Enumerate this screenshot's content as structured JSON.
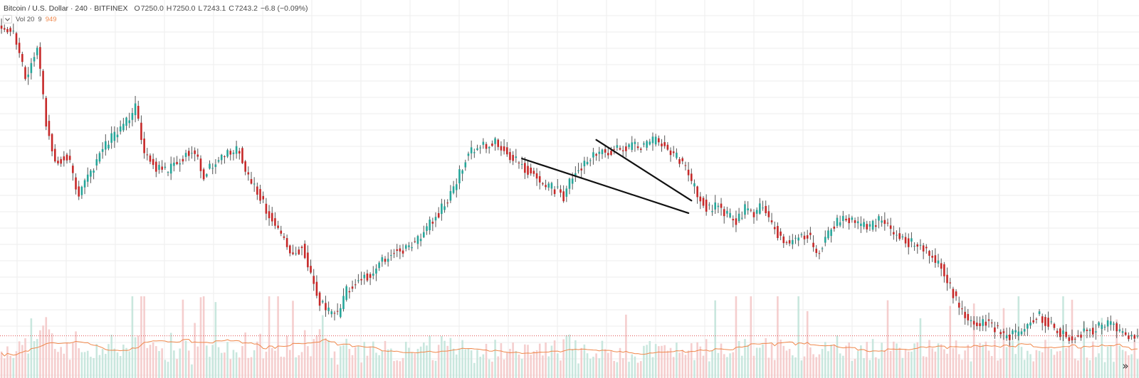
{
  "header": {
    "symbol": "Bitcoin / U.S. Dollar",
    "interval": "240",
    "exchange": "BITFINEX",
    "open_label": "O",
    "open": "7250.0",
    "high_label": "H",
    "high": "7250.0",
    "low_label": "L",
    "low": "7243.1",
    "close_label": "C",
    "close": "7243.2",
    "change": "−6.8 (−0.09%)"
  },
  "volume_indicator": {
    "name": "Vol 20",
    "value_a": "9",
    "value_b": "949",
    "collapse_icon": "chevron-down-icon"
  },
  "scroll_button": {
    "icon": "double-chevron-right-icon",
    "glyph": "»"
  },
  "colors": {
    "up": "#26a69a",
    "down": "#c62828",
    "wick": "#555555",
    "volume_up": "#bfe3d8",
    "volume_down": "#f3c6c6",
    "volume_ma": "#f0874a",
    "last_price_line": "#e05050",
    "trendline": "#111111",
    "grid": "#eeeeee"
  },
  "chart_data": {
    "type": "candlestick",
    "symbol": "Bitcoin / U.S. Dollar",
    "interval": "240",
    "grid": true,
    "last_close": 7243.2,
    "volume_ma_period": 20,
    "anchors": [
      [
        0,
        9210
      ],
      [
        4,
        9190
      ],
      [
        8,
        8900
      ],
      [
        12,
        9080
      ],
      [
        15,
        8620
      ],
      [
        18,
        8350
      ],
      [
        22,
        8400
      ],
      [
        26,
        8150
      ],
      [
        30,
        8300
      ],
      [
        34,
        8440
      ],
      [
        38,
        8530
      ],
      [
        42,
        8620
      ],
      [
        45,
        8700
      ],
      [
        48,
        8420
      ],
      [
        52,
        8320
      ],
      [
        56,
        8300
      ],
      [
        60,
        8380
      ],
      [
        64,
        8440
      ],
      [
        68,
        8280
      ],
      [
        72,
        8360
      ],
      [
        76,
        8410
      ],
      [
        80,
        8430
      ],
      [
        83,
        8250
      ],
      [
        86,
        8180
      ],
      [
        90,
        8020
      ],
      [
        94,
        7880
      ],
      [
        98,
        7760
      ],
      [
        101,
        7820
      ],
      [
        104,
        7630
      ],
      [
        107,
        7460
      ],
      [
        110,
        7400
      ],
      [
        113,
        7380
      ],
      [
        116,
        7530
      ],
      [
        120,
        7610
      ],
      [
        124,
        7640
      ],
      [
        128,
        7720
      ],
      [
        132,
        7780
      ],
      [
        136,
        7800
      ],
      [
        140,
        7870
      ],
      [
        144,
        7960
      ],
      [
        148,
        8060
      ],
      [
        152,
        8180
      ],
      [
        156,
        8380
      ],
      [
        160,
        8460
      ],
      [
        163,
        8450
      ],
      [
        166,
        8500
      ],
      [
        169,
        8440
      ],
      [
        172,
        8370
      ],
      [
        175,
        8340
      ],
      [
        178,
        8290
      ],
      [
        181,
        8230
      ],
      [
        184,
        8200
      ],
      [
        187,
        8180
      ],
      [
        189,
        8120
      ],
      [
        192,
        8270
      ],
      [
        196,
        8340
      ],
      [
        200,
        8420
      ],
      [
        204,
        8420
      ],
      [
        208,
        8440
      ],
      [
        212,
        8460
      ],
      [
        216,
        8450
      ],
      [
        220,
        8500
      ],
      [
        223,
        8470
      ],
      [
        226,
        8400
      ],
      [
        229,
        8350
      ],
      [
        232,
        8220
      ],
      [
        235,
        8120
      ],
      [
        238,
        8050
      ],
      [
        241,
        8080
      ],
      [
        244,
        8010
      ],
      [
        247,
        7980
      ],
      [
        250,
        8060
      ],
      [
        253,
        8020
      ],
      [
        256,
        8080
      ],
      [
        259,
        7960
      ],
      [
        262,
        7870
      ],
      [
        265,
        7840
      ],
      [
        268,
        7870
      ],
      [
        271,
        7900
      ],
      [
        274,
        7770
      ],
      [
        277,
        7860
      ],
      [
        280,
        7960
      ],
      [
        283,
        7980
      ],
      [
        286,
        8000
      ],
      [
        289,
        7950
      ],
      [
        292,
        7940
      ],
      [
        295,
        7980
      ],
      [
        298,
        7940
      ],
      [
        301,
        7890
      ],
      [
        304,
        7850
      ],
      [
        307,
        7830
      ],
      [
        310,
        7810
      ],
      [
        313,
        7740
      ],
      [
        316,
        7690
      ],
      [
        319,
        7560
      ],
      [
        322,
        7420
      ],
      [
        325,
        7350
      ],
      [
        328,
        7310
      ],
      [
        331,
        7340
      ],
      [
        334,
        7300
      ],
      [
        337,
        7230
      ],
      [
        340,
        7250
      ],
      [
        343,
        7270
      ],
      [
        346,
        7340
      ],
      [
        349,
        7380
      ],
      [
        352,
        7320
      ],
      [
        355,
        7280
      ],
      [
        358,
        7240
      ],
      [
        361,
        7240
      ],
      [
        364,
        7270
      ],
      [
        367,
        7280
      ],
      [
        370,
        7310
      ],
      [
        373,
        7330
      ],
      [
        376,
        7270
      ],
      [
        379,
        7250
      ],
      [
        382,
        7250
      ]
    ],
    "drawings": [
      {
        "type": "trendline",
        "label": "upper",
        "points": [
          {
            "bar": 200,
            "price": 8500
          },
          {
            "bar": 232,
            "price": 8110
          }
        ]
      },
      {
        "type": "trendline",
        "label": "lower",
        "points": [
          {
            "bar": 175,
            "price": 8380
          },
          {
            "bar": 231,
            "price": 8030
          }
        ]
      }
    ]
  }
}
